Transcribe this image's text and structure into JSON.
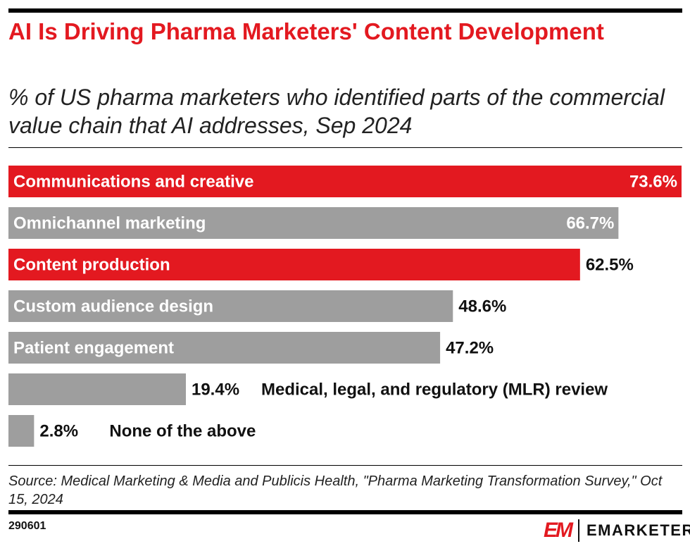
{
  "title": "AI Is Driving Pharma Marketers' Content Development",
  "subtitle": "% of US pharma marketers who identified parts of the commercial value chain that AI addresses, Sep 2024",
  "source": "Source: Medical Marketing & Media and Publicis Health, \"Pharma Marketing Transformation Survey,\" Oct 15, 2024",
  "chart_id": "290601",
  "logo": {
    "mark": "EM",
    "name": "EMARKETER"
  },
  "colors": {
    "highlight": "#e31920",
    "default": "#9e9e9e"
  },
  "chart_data": {
    "type": "bar",
    "orientation": "horizontal",
    "categories": [
      "Communications and creative",
      "Omnichannel marketing",
      "Content production",
      "Custom audience design",
      "Patient engagement",
      "Medical, legal, and regulatory (MLR) review",
      "None of the above"
    ],
    "values": [
      73.6,
      66.7,
      62.5,
      48.6,
      47.2,
      19.4,
      2.8
    ],
    "labels": [
      "73.6%",
      "66.7%",
      "62.5%",
      "48.6%",
      "47.2%",
      "19.4%",
      "2.8%"
    ],
    "highlighted": [
      true,
      false,
      true,
      false,
      false,
      false,
      false
    ],
    "unit": "%",
    "grid": false
  }
}
